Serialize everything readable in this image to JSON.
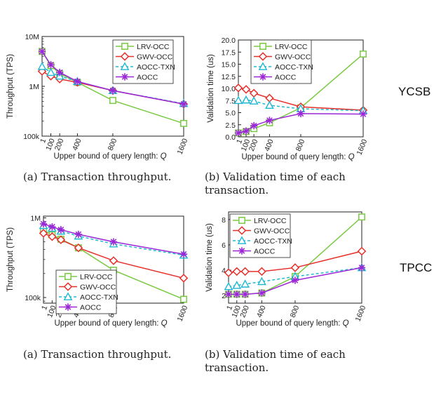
{
  "row_labels": [
    "YCSB",
    "TPCC"
  ],
  "captions": [
    [
      "(a) Transaction throughput."
    ],
    [
      "(b) Validation time of each",
      "transaction."
    ],
    [
      "(a) Transaction throughput."
    ],
    [
      "(b) Validation time of each",
      "transaction."
    ]
  ],
  "series_styles": [
    {
      "name": "LRV-OCC",
      "color": "#7ac943",
      "marker": "square",
      "dash": "none"
    },
    {
      "name": "GWV-OCC",
      "color": "#e8302b",
      "marker": "diamond",
      "dash": "none"
    },
    {
      "name": "AOCC-TXN",
      "color": "#1fb8d2",
      "marker": "triangle",
      "dash": "4,3"
    },
    {
      "name": "AOCC",
      "color": "#9b27d6",
      "marker": "star",
      "dash": "none"
    }
  ],
  "chart_data": [
    {
      "type": "line",
      "xlabel": "Upper bound of query length: Q",
      "ylabel": "Throughput (TPS)",
      "yscale": "log",
      "ylim": [
        100000,
        10000000
      ],
      "yticks": [
        100000,
        1000000,
        10000000
      ],
      "ytick_labels": [
        "100k",
        "1M",
        "10M"
      ],
      "xlim": [
        1,
        1600
      ],
      "xticks": [
        1,
        100,
        200,
        400,
        800,
        1600
      ],
      "xtick_labels": [
        "1",
        "100",
        "200",
        "400",
        "800",
        "1600"
      ],
      "legend": "top-right",
      "series": [
        {
          "name": "LRV-OCC",
          "x": [
            1,
            100,
            200,
            400,
            800,
            1600
          ],
          "values": [
            5000000,
            2600000,
            1800000,
            1200000,
            520000,
            180000
          ]
        },
        {
          "name": "GWV-OCC",
          "x": [
            1,
            100,
            200,
            400,
            800,
            1600
          ],
          "values": [
            2000000,
            1600000,
            1400000,
            1200000,
            820000,
            440000
          ]
        },
        {
          "name": "AOCC-TXN",
          "x": [
            1,
            100,
            200,
            400,
            800,
            1600
          ],
          "values": [
            2500000,
            1900000,
            1600000,
            1250000,
            820000,
            450000
          ]
        },
        {
          "name": "AOCC",
          "x": [
            1,
            100,
            200,
            400,
            800,
            1600
          ],
          "values": [
            5000000,
            2700000,
            1900000,
            1250000,
            820000,
            440000
          ]
        }
      ]
    },
    {
      "type": "line",
      "xlabel": "Upper bound of query length: Q",
      "ylabel": "Validation time (us)",
      "yscale": "linear",
      "ylim": [
        0,
        20
      ],
      "yticks": [
        0,
        2.5,
        5,
        7.5,
        10,
        12.5,
        15,
        17.5,
        20
      ],
      "ytick_labels": [
        "0.0",
        "2.5",
        "5.0",
        "7.5",
        "10.0",
        "12.5",
        "15.0",
        "17.5",
        "20.0"
      ],
      "xlim": [
        1,
        1600
      ],
      "xticks": [
        1,
        100,
        200,
        400,
        800,
        1600
      ],
      "xtick_labels": [
        "1",
        "100",
        "200",
        "400",
        "800",
        "1600"
      ],
      "legend": "top-right",
      "series": [
        {
          "name": "LRV-OCC",
          "x": [
            1,
            100,
            200,
            400,
            800,
            1600
          ],
          "values": [
            0.8,
            1.1,
            1.7,
            2.9,
            6.0,
            17.1
          ]
        },
        {
          "name": "GWV-OCC",
          "x": [
            1,
            100,
            200,
            400,
            800,
            1600
          ],
          "values": [
            10.1,
            9.8,
            9.0,
            8.0,
            6.2,
            5.5
          ]
        },
        {
          "name": "AOCC-TXN",
          "x": [
            1,
            100,
            200,
            400,
            800,
            1600
          ],
          "values": [
            7.5,
            7.6,
            7.4,
            6.5,
            5.8,
            5.4
          ]
        },
        {
          "name": "AOCC",
          "x": [
            1,
            100,
            200,
            400,
            800,
            1600
          ],
          "values": [
            0.8,
            1.2,
            2.3,
            3.4,
            4.8,
            4.7
          ]
        }
      ]
    },
    {
      "type": "line",
      "xlabel": "Upper bound of query length: Q",
      "ylabel": "Throughput (TPS)",
      "yscale": "log",
      "ylim": [
        85000,
        1050000
      ],
      "yticks": [
        100000,
        1000000
      ],
      "ytick_labels": [
        "100k",
        "1M"
      ],
      "xlim": [
        1,
        1600
      ],
      "xticks": [
        1,
        100,
        200,
        400,
        800,
        1600
      ],
      "xtick_labels": [
        "1",
        "100",
        "200",
        "400",
        "800",
        "1600"
      ],
      "legend": "bottom-left",
      "series": [
        {
          "name": "LRV-OCC",
          "x": [
            1,
            100,
            200,
            400,
            800,
            1600
          ],
          "values": [
            700000,
            610000,
            540000,
            420000,
            220000,
            95000
          ]
        },
        {
          "name": "GWV-OCC",
          "x": [
            1,
            100,
            200,
            400,
            800,
            1600
          ],
          "values": [
            640000,
            580000,
            530000,
            420000,
            290000,
            175000
          ]
        },
        {
          "name": "AOCC-TXN",
          "x": [
            1,
            100,
            200,
            400,
            800,
            1600
          ],
          "values": [
            800000,
            740000,
            680000,
            590000,
            470000,
            340000
          ]
        },
        {
          "name": "AOCC",
          "x": [
            1,
            100,
            200,
            400,
            800,
            1600
          ],
          "values": [
            840000,
            770000,
            710000,
            620000,
            500000,
            350000
          ]
        }
      ]
    },
    {
      "type": "line",
      "xlabel": "Upper bound of query length: Q",
      "ylabel": "Validation time (us)",
      "yscale": "linear",
      "ylim": [
        1.4,
        8.6
      ],
      "yticks": [
        2,
        4,
        6,
        8
      ],
      "ytick_labels": [
        "2",
        "4",
        "6",
        "8"
      ],
      "xlim": [
        1,
        1600
      ],
      "xticks": [
        1,
        100,
        200,
        400,
        800,
        1600
      ],
      "xtick_labels": [
        "1",
        "100",
        "200",
        "400",
        "800",
        "1600"
      ],
      "legend": "top-left",
      "series": [
        {
          "name": "LRV-OCC",
          "x": [
            1,
            100,
            200,
            400,
            800,
            1600
          ],
          "values": [
            2.1,
            2.1,
            2.1,
            2.2,
            3.5,
            8.2
          ]
        },
        {
          "name": "GWV-OCC",
          "x": [
            1,
            100,
            200,
            400,
            800,
            1600
          ],
          "values": [
            3.8,
            3.9,
            3.9,
            3.9,
            4.2,
            5.5
          ]
        },
        {
          "name": "AOCC-TXN",
          "x": [
            1,
            100,
            200,
            400,
            800,
            1600
          ],
          "values": [
            2.7,
            2.8,
            2.9,
            3.1,
            3.5,
            4.2
          ]
        },
        {
          "name": "AOCC",
          "x": [
            1,
            100,
            200,
            400,
            800,
            1600
          ],
          "values": [
            2.1,
            2.1,
            2.1,
            2.2,
            3.2,
            4.2
          ]
        }
      ]
    }
  ]
}
